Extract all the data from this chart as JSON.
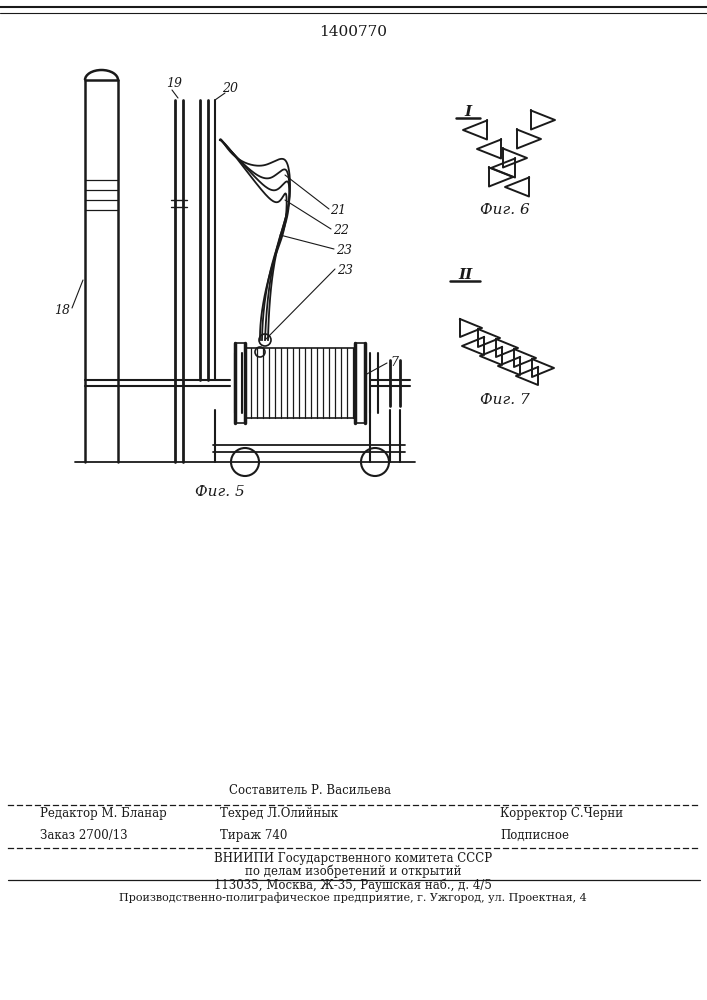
{
  "title": "1400770",
  "fig5_caption": "Фиг. 5",
  "fig6_caption": "Фиг. 6",
  "fig7_caption": "Фиг. 7",
  "label_I": "I",
  "label_II": "II",
  "bg_color": "#ffffff",
  "line_color": "#1a1a1a",
  "footer_sestavitel": "Составитель Р. Васильева",
  "footer_redaktor": "Редактор М. Бланар",
  "footer_tehred": "Техред Л.Олийнык",
  "footer_korrektor": "Корректор С.Черни",
  "footer_zakaz": "Заказ 2700/13",
  "footer_tirazh": "Тираж 740",
  "footer_podpisnoe": "Подписное",
  "footer_vniipи1": "ВНИИПИ Государственного комитета СССР",
  "footer_vniipи2": "по делам изобретений и открытий",
  "footer_vniipи3": "113035, Москва, Ж-35, Раушская наб., д. 4/5",
  "footer_last": "Производственно-полиграфическое предприятие, г. Ужгород, ул. Проектная, 4"
}
